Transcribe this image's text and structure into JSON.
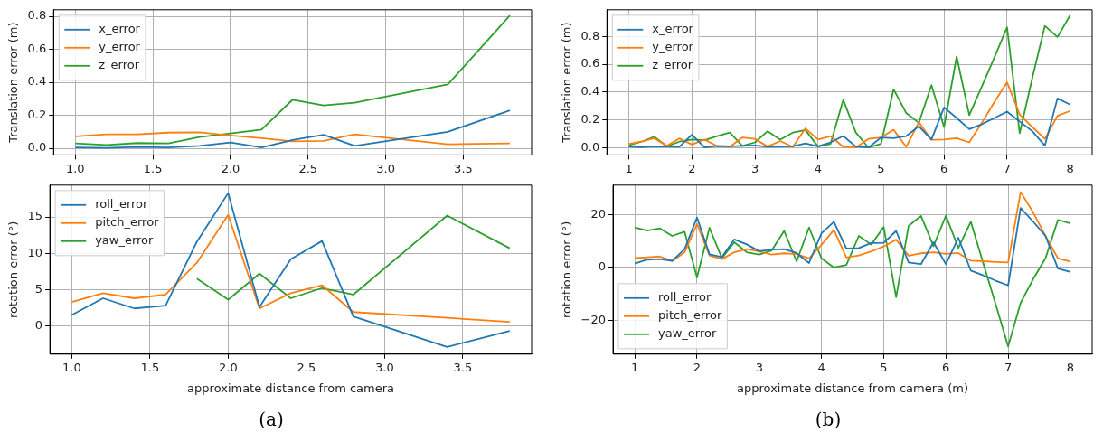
{
  "chart_data": [
    {
      "type": "line",
      "ylabel": "Translation error (m)",
      "x": [
        1.0,
        1.2,
        1.4,
        1.6,
        1.8,
        2.0,
        2.2,
        2.4,
        2.6,
        2.8,
        3.4,
        3.8
      ],
      "series": [
        {
          "name": "x_error",
          "color": "#1f77b4",
          "values": [
            0.005,
            0.003,
            0.008,
            0.005,
            0.015,
            0.035,
            0.005,
            0.05,
            0.082,
            0.015,
            0.1,
            0.23
          ]
        },
        {
          "name": "y_error",
          "color": "#ff7f0e",
          "values": [
            0.073,
            0.085,
            0.085,
            0.095,
            0.097,
            0.078,
            0.062,
            0.042,
            0.045,
            0.085,
            0.025,
            0.03
          ]
        },
        {
          "name": "z_error",
          "color": "#2ca02c",
          "values": [
            0.03,
            0.02,
            0.032,
            0.03,
            0.068,
            0.09,
            0.113,
            0.295,
            0.26,
            0.277,
            0.387,
            0.805
          ]
        }
      ],
      "xlim": [
        0.86,
        3.94
      ],
      "xticks": [
        {
          "value": 1,
          "label": "1.0"
        },
        {
          "value": 1.5,
          "label": "1.5"
        },
        {
          "value": 2,
          "label": "2.0"
        },
        {
          "value": 2.5,
          "label": "2.5"
        },
        {
          "value": 3,
          "label": "3.0"
        },
        {
          "value": 3.5,
          "label": "3.5"
        }
      ],
      "ylim": [
        -0.04,
        0.84
      ],
      "yticks": [
        {
          "value": 0,
          "label": "0.0"
        },
        {
          "value": 0.2,
          "label": "0.2"
        },
        {
          "value": 0.4,
          "label": "0.4"
        },
        {
          "value": 0.6,
          "label": "0.6"
        },
        {
          "value": 0.8,
          "label": "0.8"
        }
      ],
      "grid": true,
      "legend": "top left",
      "marker": "none",
      "line_style": "solid"
    },
    {
      "type": "line",
      "ylabel": "Translation error (m)",
      "x": [
        1.0,
        1.2,
        1.4,
        1.6,
        1.8,
        2.0,
        2.2,
        2.4,
        2.6,
        2.8,
        3.0,
        3.2,
        3.4,
        3.6,
        3.8,
        4.0,
        4.2,
        4.4,
        4.6,
        4.8,
        5.0,
        5.2,
        5.4,
        5.6,
        5.8,
        6.0,
        6.2,
        6.4,
        6.6,
        6.8,
        7.0,
        7.2,
        7.4,
        7.6,
        7.8,
        8.0
      ],
      "series": [
        {
          "name": "x_error",
          "color": "#1f77b4",
          "values": [
            0.01,
            0.005,
            0.012,
            0.01,
            0.008,
            0.095,
            0.003,
            0.015,
            0.012,
            0.015,
            0.018,
            0.008,
            0.01,
            0.012,
            0.033,
            0.012,
            0.04,
            0.085,
            0.01,
            0.003,
            0.075,
            0.07,
            0.085,
            0.155,
            0.06,
            0.29,
            0.215,
            0.135,
            0.17,
            0.215,
            0.26,
            0.19,
            0.12,
            0.017,
            0.355,
            0.31
          ]
        },
        {
          "name": "y_error",
          "color": "#ff7f0e",
          "values": [
            0.03,
            0.045,
            0.07,
            0.015,
            0.068,
            0.025,
            0.06,
            0.012,
            0.008,
            0.075,
            0.065,
            0.01,
            0.05,
            0.008,
            0.14,
            0.06,
            0.085,
            0.008,
            0.003,
            0.065,
            0.075,
            0.13,
            0.008,
            0.185,
            0.058,
            0.06,
            0.07,
            0.04,
            0.18,
            0.33,
            0.47,
            0.24,
            0.15,
            0.065,
            0.23,
            0.265
          ]
        },
        {
          "name": "z_error",
          "color": "#2ca02c",
          "values": [
            0.02,
            0.045,
            0.08,
            0.012,
            0.045,
            0.06,
            0.055,
            0.085,
            0.11,
            0.015,
            0.04,
            0.12,
            0.06,
            0.11,
            0.128,
            0.01,
            0.03,
            0.345,
            0.11,
            0.003,
            0.03,
            0.42,
            0.25,
            0.18,
            0.45,
            0.15,
            0.655,
            0.235,
            0.44,
            0.65,
            0.865,
            0.105,
            0.5,
            0.875,
            0.795,
            0.95
          ]
        }
      ],
      "xlim": [
        0.65,
        8.35
      ],
      "xticks": [
        1,
        2,
        3,
        4,
        5,
        6,
        7,
        8
      ],
      "ylim": [
        -0.05,
        0.99
      ],
      "yticks": [
        {
          "value": 0,
          "label": "0.0"
        },
        {
          "value": 0.2,
          "label": "0.2"
        },
        {
          "value": 0.4,
          "label": "0.4"
        },
        {
          "value": 0.6,
          "label": "0.6"
        },
        {
          "value": 0.8,
          "label": "0.8"
        }
      ],
      "grid": true,
      "legend": "top left",
      "marker": "none",
      "line_style": "solid"
    },
    {
      "type": "line",
      "xlabel": "approximate distance from camera",
      "ylabel": "rotation error (°)",
      "x": [
        1.0,
        1.2,
        1.4,
        1.6,
        1.8,
        2.0,
        2.2,
        2.4,
        2.6,
        2.8,
        3.4,
        3.8
      ],
      "series": [
        {
          "name": "roll_error",
          "color": "#1f77b4",
          "values": [
            1.5,
            3.8,
            2.4,
            2.8,
            11.6,
            18.3,
            2.6,
            9.2,
            11.7,
            1.3,
            -2.9,
            -0.7
          ]
        },
        {
          "name": "pitch_error",
          "color": "#ff7f0e",
          "values": [
            3.3,
            4.5,
            3.8,
            4.3,
            8.7,
            15.3,
            2.4,
            4.5,
            5.6,
            1.9,
            1.1,
            0.55
          ]
        },
        {
          "name": "yaw_error",
          "color": "#2ca02c",
          "values": [
            null,
            null,
            null,
            null,
            6.5,
            3.6,
            7.2,
            3.8,
            5.2,
            4.3,
            15.2,
            10.7
          ]
        }
      ],
      "xlim": [
        0.86,
        3.94
      ],
      "xticks": [
        {
          "value": 1,
          "label": "1.0"
        },
        {
          "value": 1.5,
          "label": "1.5"
        },
        {
          "value": 2,
          "label": "2.0"
        },
        {
          "value": 2.5,
          "label": "2.5"
        },
        {
          "value": 3,
          "label": "3.0"
        },
        {
          "value": 3.5,
          "label": "3.5"
        }
      ],
      "ylim": [
        -3.9,
        19.4
      ],
      "yticks": [
        0,
        5,
        10,
        15
      ],
      "grid": true,
      "legend": "top left",
      "marker": "none",
      "line_style": "solid",
      "annotations": [
        "(a)"
      ]
    },
    {
      "type": "line",
      "xlabel": "approximate distance from camera (m)",
      "ylabel": "rotation error (°)",
      "x": [
        1.0,
        1.2,
        1.4,
        1.6,
        1.8,
        2.0,
        2.2,
        2.4,
        2.6,
        2.8,
        3.0,
        3.2,
        3.4,
        3.6,
        3.8,
        4.0,
        4.2,
        4.4,
        4.6,
        4.8,
        5.0,
        5.2,
        5.4,
        5.6,
        5.8,
        6.0,
        6.2,
        6.4,
        6.6,
        6.8,
        7.0,
        7.2,
        7.4,
        7.6,
        7.8,
        8.0
      ],
      "series": [
        {
          "name": "roll_error",
          "color": "#1f77b4",
          "values": [
            1.5,
            3,
            3.2,
            2.5,
            7,
            19,
            5,
            4,
            10.7,
            8.8,
            6.2,
            6.8,
            7,
            5.5,
            1.7,
            13,
            17.4,
            7.2,
            7.4,
            9.3,
            9.4,
            13.9,
            1.9,
            1.3,
            9.6,
            1.3,
            11.3,
            -1.2,
            -3,
            -5,
            -6.8,
            22.6,
            17.5,
            12,
            -0.4,
            -1.7
          ]
        },
        {
          "name": "pitch_error",
          "color": "#ff7f0e",
          "values": [
            3.6,
            3.9,
            4.2,
            2.5,
            5.7,
            16.5,
            4.6,
            3.2,
            5.8,
            7,
            6.1,
            4.9,
            5.4,
            5.1,
            3.5,
            8.6,
            14.3,
            3.8,
            4.6,
            6.1,
            8,
            10.6,
            4.5,
            5.4,
            5.8,
            5.2,
            5.5,
            2.6,
            2.4,
            2.1,
            1.9,
            28.7,
            21,
            12,
            3.5,
            2.3
          ]
        },
        {
          "name": "yaw_error",
          "color": "#2ca02c",
          "values": [
            15.2,
            14,
            14.9,
            12,
            13.6,
            -3.8,
            15.1,
            3.5,
            9.6,
            5.8,
            4.9,
            6.5,
            13.9,
            2.3,
            15.2,
            3.5,
            0,
            1,
            12,
            8.7,
            15.4,
            -11.3,
            15.8,
            19.6,
            8.1,
            19.7,
            7.4,
            17.4,
            1.6,
            -14,
            -30,
            -13.5,
            -4.5,
            3.5,
            18.1,
            16.8
          ]
        }
      ],
      "xlim": [
        0.65,
        8.35
      ],
      "xticks": [
        1,
        2,
        3,
        4,
        5,
        6,
        7,
        8
      ],
      "ylim": [
        -32.9,
        31.3
      ],
      "yticks": [
        {
          "value": -20,
          "label": "−20"
        },
        0,
        20
      ],
      "grid": true,
      "legend": "bottom left",
      "marker": "none",
      "line_style": "solid",
      "annotations": [
        "(b)"
      ]
    }
  ]
}
